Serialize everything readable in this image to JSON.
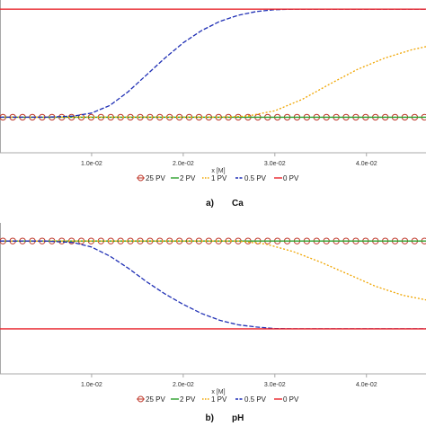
{
  "colors": {
    "pv25": "#c0392b",
    "pv2": "#2ca02c",
    "pv1": "#f0a500",
    "pv05": "#1f2fb5",
    "pv0": "#e8242b",
    "axis": "#a8a8a8"
  },
  "chart_data": [
    {
      "type": "line",
      "panel_label": "a)",
      "title": "Ca",
      "xlabel": "x [M]",
      "xlim": [
        0,
        0.0465
      ],
      "ylim": [
        0,
        1
      ],
      "x_ticks": [
        0.01,
        0.02,
        0.03,
        0.04
      ],
      "x_tick_labels": [
        "1.0e-02",
        "2.0e-02",
        "3.0e-02",
        "4.0e-02"
      ],
      "grid": false,
      "legend_position": "bottom",
      "series": [
        {
          "name": "25 PV",
          "style": "markers-circle",
          "x": [
            0,
            0.0465
          ],
          "y": [
            0.233,
            0.233
          ]
        },
        {
          "name": "2 PV",
          "style": "solid",
          "x": [
            0,
            0.0465
          ],
          "y": [
            0.233,
            0.233
          ]
        },
        {
          "name": "1 PV",
          "style": "dotted",
          "x": [
            0,
            0.024,
            0.027,
            0.03,
            0.033,
            0.036,
            0.039,
            0.042,
            0.045,
            0.0465
          ],
          "y": [
            0.233,
            0.233,
            0.24,
            0.275,
            0.35,
            0.45,
            0.545,
            0.62,
            0.675,
            0.695
          ]
        },
        {
          "name": "0.5 PV",
          "style": "dashed",
          "x": [
            0,
            0.005,
            0.008,
            0.01,
            0.012,
            0.014,
            0.016,
            0.018,
            0.02,
            0.022,
            0.024,
            0.026,
            0.028,
            0.03,
            0.032,
            0.0465
          ],
          "y": [
            0.233,
            0.233,
            0.24,
            0.26,
            0.31,
            0.4,
            0.51,
            0.62,
            0.72,
            0.8,
            0.86,
            0.9,
            0.925,
            0.937,
            0.94,
            0.94
          ]
        },
        {
          "name": "0 PV",
          "style": "solid",
          "x": [
            0,
            0.0465
          ],
          "y": [
            0.94,
            0.94
          ]
        }
      ]
    },
    {
      "type": "line",
      "panel_label": "b)",
      "title": "pH",
      "xlabel": "x [M]",
      "xlim": [
        0,
        0.0465
      ],
      "ylim": [
        0,
        1
      ],
      "x_ticks": [
        0.01,
        0.02,
        0.03,
        0.04
      ],
      "x_tick_labels": [
        "1.0e-02",
        "2.0e-02",
        "3.0e-02",
        "4.0e-02"
      ],
      "grid": false,
      "legend_position": "bottom",
      "series": [
        {
          "name": "25 PV",
          "style": "markers-circle",
          "x": [
            0,
            0.0465
          ],
          "y": [
            0.88,
            0.88
          ]
        },
        {
          "name": "2 PV",
          "style": "solid",
          "x": [
            0,
            0.0465
          ],
          "y": [
            0.88,
            0.88
          ]
        },
        {
          "name": "1 PV",
          "style": "dotted",
          "x": [
            0,
            0.026,
            0.029,
            0.032,
            0.035,
            0.038,
            0.041,
            0.044,
            0.0465
          ],
          "y": [
            0.88,
            0.88,
            0.86,
            0.81,
            0.74,
            0.66,
            0.58,
            0.52,
            0.49
          ]
        },
        {
          "name": "0.5 PV",
          "style": "dashed",
          "x": [
            0,
            0.005,
            0.008,
            0.01,
            0.012,
            0.014,
            0.016,
            0.018,
            0.02,
            0.022,
            0.024,
            0.026,
            0.028,
            0.03,
            0.032,
            0.0465
          ],
          "y": [
            0.88,
            0.88,
            0.87,
            0.84,
            0.78,
            0.7,
            0.61,
            0.53,
            0.46,
            0.4,
            0.355,
            0.325,
            0.31,
            0.3,
            0.298,
            0.298
          ]
        },
        {
          "name": "0 PV",
          "style": "solid",
          "x": [
            0,
            0.0465
          ],
          "y": [
            0.298,
            0.298
          ]
        }
      ]
    }
  ]
}
